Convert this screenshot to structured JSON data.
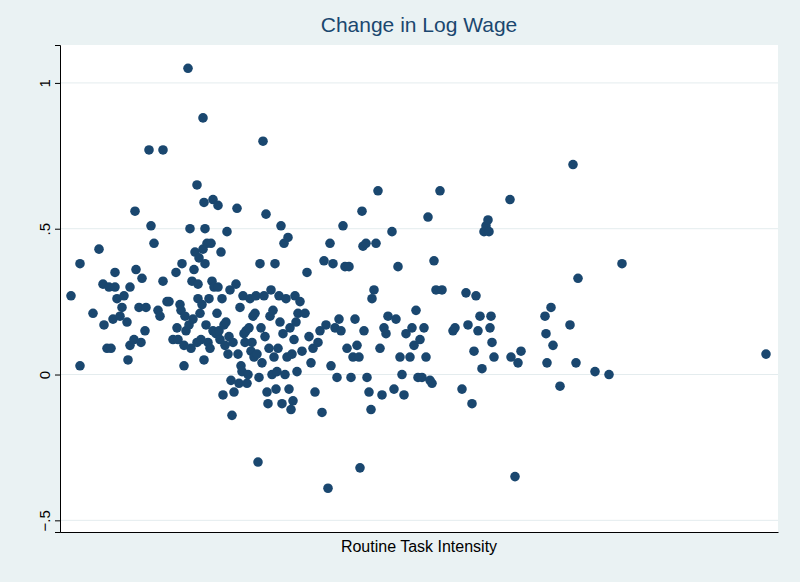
{
  "chart_data": {
    "type": "scatter",
    "title": "Change in Log Wage",
    "x_label": "Routine Task Intensity",
    "color": "#1a476f",
    "marker": "circle",
    "grid": true,
    "tick_labels": "y",
    "xlim": [
      0,
      718
    ],
    "ylim": [
      -0.54,
      1.13
    ],
    "yticks": [
      {
        "value": -0.5,
        "label": "−.5"
      },
      0,
      {
        "value": 0.5,
        "label": ".5"
      },
      1
    ],
    "x": [
      11,
      20,
      20,
      33,
      39,
      43,
      44,
      47,
      49,
      51,
      53,
      55,
      55,
      57,
      60,
      62,
      64,
      67,
      68,
      70,
      70,
      74,
      75,
      76,
      79,
      81,
      82,
      85,
      86,
      89,
      91,
      94,
      98,
      100,
      103,
      103,
      107,
      109,
      113,
      116,
      117,
      118,
      120,
      121,
      122,
      124,
      124,
      125,
      126,
      128,
      129,
      130,
      131,
      132,
      133,
      134,
      135,
      137,
      137,
      138,
      138,
      139,
      140,
      141,
      142,
      143,
      143,
      144,
      144,
      145,
      145,
      146,
      147,
      148,
      149,
      150,
      151,
      152,
      153,
      153,
      154,
      156,
      157,
      158,
      158,
      159,
      160,
      161,
      162,
      163,
      164,
      165,
      166,
      167,
      168,
      169,
      170,
      171,
      172,
      173,
      174,
      176,
      177,
      178,
      179,
      180,
      181,
      182,
      183,
      184,
      185,
      186,
      187,
      188,
      189,
      190,
      191,
      192,
      193,
      194,
      195,
      196,
      197,
      198,
      199,
      200,
      201,
      202,
      203,
      204,
      205,
      206,
      207,
      208,
      209,
      210,
      211,
      212,
      213,
      214,
      215,
      216,
      217,
      218,
      219,
      220,
      221,
      222,
      223,
      224,
      225,
      226,
      227,
      228,
      229,
      230,
      231,
      232,
      233,
      234,
      235,
      236,
      237,
      238,
      240,
      242,
      245,
      247,
      249,
      251,
      253,
      255,
      258,
      260,
      262,
      264,
      266,
      268,
      270,
      271,
      273,
      275,
      277,
      279,
      281,
      283,
      285,
      287,
      289,
      291,
      293,
      295,
      297,
      299,
      300,
      302,
      303,
      304,
      306,
      307,
      309,
      311,
      312,
      314,
      316,
      318,
      320,
      322,
      324,
      326,
      328,
      332,
      334,
      336,
      338,
      340,
      342,
      344,
      346,
      350,
      352,
      354,
      356,
      358,
      360,
      362,
      364,
      366,
      368,
      370,
      372,
      374,
      376,
      380,
      382,
      393,
      395,
      402,
      406,
      408,
      412,
      414,
      416,
      418,
      420,
      422,
      424,
      426,
      428,
      429,
      430,
      431,
      432,
      434,
      450,
      451,
      455,
      458,
      461,
      485,
      486,
      487,
      491,
      493,
      500,
      510,
      513,
      516,
      518,
      535,
      549,
      562,
      706
    ],
    "y": [
      0.27,
      0.38,
      0.03,
      0.21,
      0.43,
      0.31,
      0.17,
      0.09,
      0.3,
      0.09,
      0.19,
      0.35,
      0.3,
      0.26,
      0.2,
      0.23,
      0.27,
      0.18,
      0.05,
      0.1,
      0.3,
      0.12,
      0.56,
      0.36,
      0.23,
      0.11,
      0.33,
      0.15,
      0.23,
      0.77,
      0.51,
      0.45,
      0.22,
      0.2,
      0.77,
      0.32,
      0.25,
      0.25,
      0.12,
      0.35,
      0.16,
      0.12,
      0.24,
      0.22,
      0.38,
      0.03,
      0.1,
      0.2,
      0.15,
      1.05,
      0.17,
      0.5,
      0.09,
      0.32,
      0.19,
      0.36,
      0.42,
      0.65,
      0.11,
      0.31,
      0.26,
      0.4,
      0.21,
      0.12,
      0.24,
      0.88,
      0.43,
      0.59,
      0.05,
      0.38,
      0.5,
      0.17,
      0.45,
      0.11,
      0.26,
      0.09,
      0.45,
      0.32,
      0.6,
      0.15,
      0.3,
      0.14,
      0.21,
      0.58,
      0.3,
      0.15,
      0.12,
      0.42,
      0.26,
      -0.07,
      0.17,
      0.1,
      0.18,
      0.49,
      0.07,
      0.13,
      0.29,
      -0.02,
      -0.14,
      0.11,
      -0.06,
      0.31,
      0.57,
      0.07,
      -0.03,
      0.23,
      0.03,
      0.01,
      0.27,
      0.14,
      0.11,
      0.15,
      -0.03,
      0.0,
      0.16,
      0.26,
      0.08,
      0.11,
      0.2,
      0.06,
      0.21,
      0.27,
      0.07,
      -0.3,
      -0.01,
      0.38,
      0.16,
      0.04,
      0.8,
      0.27,
      0.13,
      0.55,
      -0.06,
      -0.1,
      0.09,
      0.2,
      0.29,
      0.0,
      0.22,
      0.06,
      0.38,
      -0.05,
      0.01,
      0.09,
      0.27,
      0.18,
      0.51,
      -0.1,
      0.14,
      0.45,
      0.0,
      0.26,
      0.06,
      0.47,
      -0.05,
      0.16,
      -0.12,
      0.07,
      -0.09,
      0.12,
      0.27,
      0.18,
      0.01,
      0.21,
      0.25,
      0.08,
      0.21,
      0.35,
      0.13,
      0.04,
      0.09,
      -0.06,
      0.11,
      0.15,
      -0.13,
      0.39,
      0.17,
      -0.39,
      0.45,
      0.03,
      0.38,
      0.16,
      -0.01,
      0.19,
      0.15,
      0.51,
      0.37,
      0.09,
      0.37,
      -0.01,
      0.06,
      0.19,
      0.1,
      0.06,
      -0.32,
      0.56,
      0.44,
      0.15,
      0.45,
      -0.01,
      -0.06,
      -0.12,
      0.26,
      0.29,
      0.45,
      0.63,
      0.09,
      -0.07,
      0.16,
      0.14,
      0.2,
      0.49,
      -0.05,
      0.19,
      0.37,
      0.06,
      0.0,
      -0.07,
      0.14,
      0.06,
      0.16,
      0.1,
      0.22,
      -0.01,
      0.12,
      -0.01,
      0.16,
      0.06,
      0.54,
      -0.02,
      -0.03,
      0.39,
      0.29,
      0.63,
      0.29,
      0.15,
      0.16,
      -0.05,
      0.28,
      0.17,
      -0.1,
      0.08,
      0.27,
      0.15,
      0.2,
      0.02,
      0.49,
      0.51,
      0.53,
      0.49,
      0.16,
      0.2,
      0.11,
      0.06,
      0.6,
      0.06,
      -0.35,
      0.04,
      0.08,
      0.2,
      0.14,
      0.04,
      0.23,
      0.1,
      -0.04,
      0.17,
      0.72,
      0.04,
      0.33,
      0.01,
      0.0,
      0.38,
      0.07
    ]
  }
}
